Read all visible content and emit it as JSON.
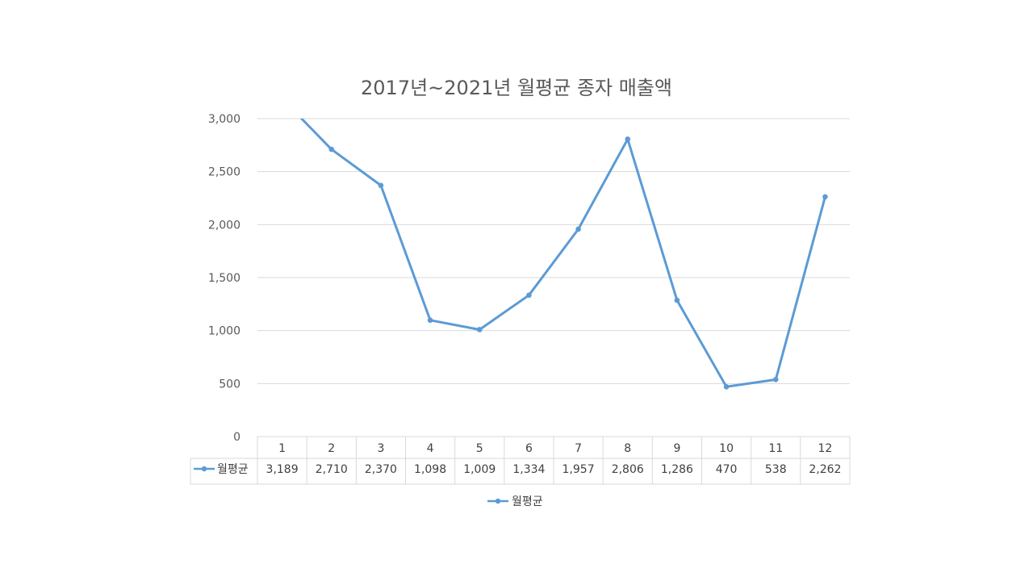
{
  "chart_data": {
    "type": "line",
    "title": "2017년~2021년 월평균 종자 매출액",
    "categories": [
      "1",
      "2",
      "3",
      "4",
      "5",
      "6",
      "7",
      "8",
      "9",
      "10",
      "11",
      "12"
    ],
    "series": [
      {
        "name": "월평균",
        "values": [
          3189,
          2710,
          2370,
          1098,
          1009,
          1334,
          1957,
          2806,
          1286,
          470,
          538,
          2262
        ],
        "value_labels": [
          "3,189",
          "2,710",
          "2,370",
          "1,098",
          "1,009",
          "1,334",
          "1,957",
          "2,806",
          "1,286",
          "470",
          "538",
          "2,262"
        ],
        "color": "#5b9bd5",
        "marker": "circle"
      }
    ],
    "ylim": [
      0,
      3000
    ],
    "yticks": [
      0,
      500,
      1000,
      1500,
      2000,
      2500,
      3000
    ],
    "ytick_labels": [
      "0",
      "500",
      "1,000",
      "1,500",
      "2,000",
      "2,500",
      "3,000"
    ],
    "grid": true,
    "data_table": true,
    "legend": "bottom",
    "xlabel": "",
    "ylabel": ""
  },
  "colors": {
    "series": "#5b9bd5",
    "gridline": "#d9d9d9",
    "text": "#595959"
  }
}
